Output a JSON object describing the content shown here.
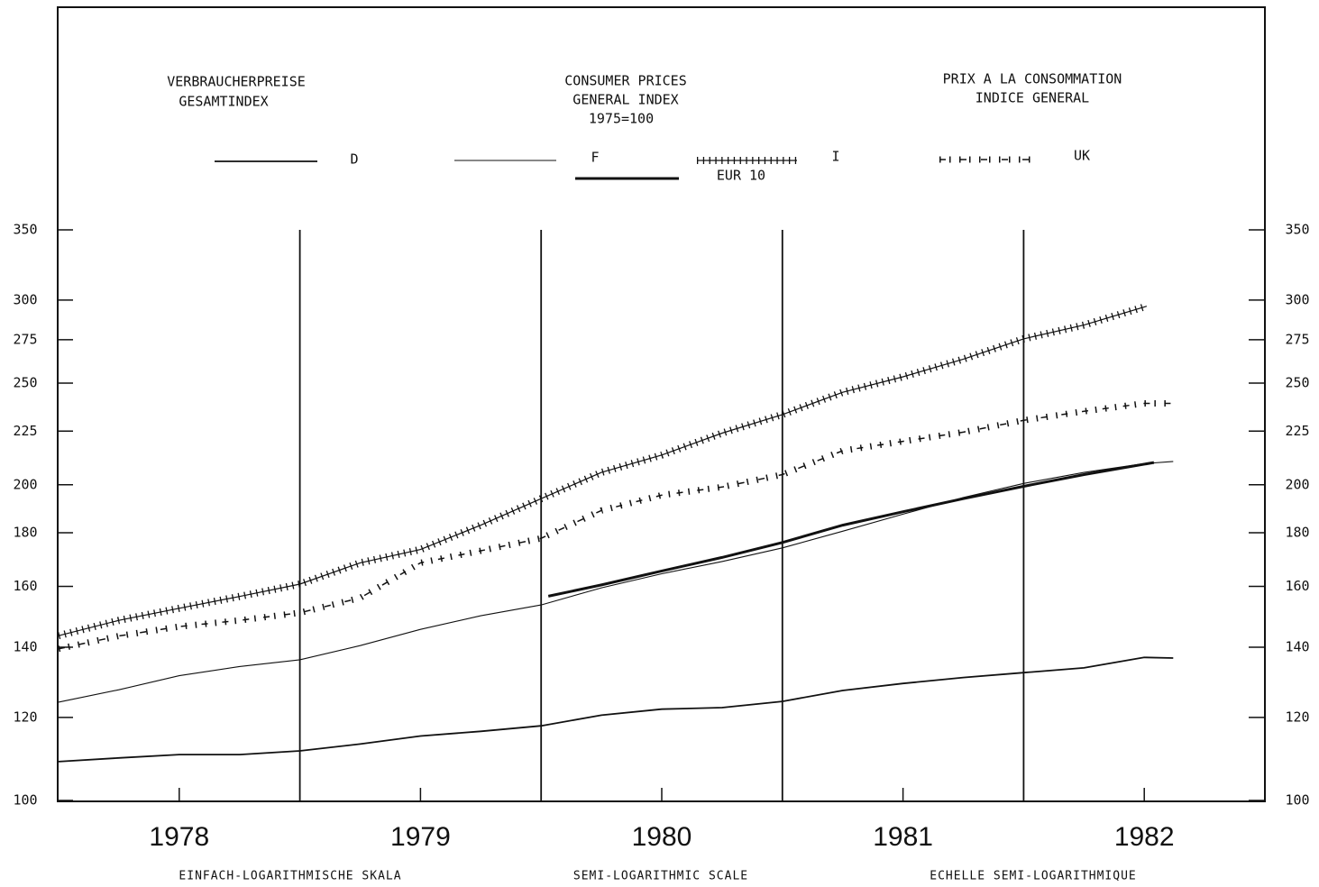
{
  "chart_data": {
    "type": "line",
    "title_de": [
      "VERBRAUCHERPREISE",
      "GESAMTINDEX"
    ],
    "title_en": [
      "CONSUMER PRICES",
      "GENERAL INDEX",
      "1975=100"
    ],
    "title_fr": [
      "PRIX A LA CONSOMMATION",
      "INDICE GENERAL"
    ],
    "scale_notes": [
      "EINFACH-LOGARITHMISCHE SKALA",
      "SEMI-LOGARITHMIC SCALE",
      "ECHELLE SEMI-LOGARITHMIQUE"
    ],
    "log_scale": true,
    "xlim": [
      1978,
      1983
    ],
    "xticks": [
      {
        "value": 1978.5,
        "label": "1978"
      },
      {
        "value": 1979.5,
        "label": "1979"
      },
      {
        "value": 1980.5,
        "label": "1980"
      },
      {
        "value": 1981.5,
        "label": "1981"
      },
      {
        "value": 1982.5,
        "label": "1982"
      }
    ],
    "year_lines": [
      1979,
      1980,
      1981,
      1982
    ],
    "ylim": [
      100,
      350
    ],
    "yticks": [
      100,
      120,
      140,
      160,
      180,
      200,
      225,
      250,
      275,
      300,
      350
    ],
    "series": [
      {
        "name": "D",
        "color": "#111",
        "line_style": "solid",
        "x": [
          1978.0,
          1978.25,
          1978.5,
          1978.75,
          1979.0,
          1979.25,
          1979.5,
          1979.75,
          1980.0,
          1980.25,
          1980.5,
          1980.75,
          1981.0,
          1981.25,
          1981.5,
          1981.75,
          1982.0,
          1982.25,
          1982.5,
          1982.62
        ],
        "values": [
          108.9,
          109.8,
          110.6,
          110.6,
          111.5,
          113.2,
          115.2,
          116.4,
          117.8,
          120.6,
          122.2,
          122.6,
          124.3,
          127.3,
          129.3,
          131.0,
          132.4,
          133.8,
          136.9,
          136.7
        ]
      },
      {
        "name": "F",
        "color": "#111",
        "line_style": "thin",
        "x": [
          1978.0,
          1978.25,
          1978.5,
          1978.75,
          1979.0,
          1979.25,
          1979.5,
          1979.75,
          1980.0,
          1980.25,
          1980.5,
          1980.75,
          1981.0,
          1981.25,
          1981.5,
          1981.75,
          1982.0,
          1982.25,
          1982.5,
          1982.62
        ],
        "values": [
          124.1,
          127.5,
          131.5,
          134.2,
          136.2,
          140.5,
          145.6,
          150.0,
          153.6,
          159.5,
          164.5,
          169.0,
          174.1,
          180.6,
          187.5,
          194.5,
          200.6,
          205.5,
          209.5,
          210.5
        ]
      },
      {
        "name": "EUR 10",
        "color": "#111",
        "line_style": "thick",
        "x": [
          1980.03,
          1980.25,
          1980.5,
          1980.75,
          1981.0,
          1981.25,
          1981.5,
          1981.75,
          1982.0,
          1982.25,
          1982.54
        ],
        "values": [
          156.6,
          160.5,
          165.5,
          170.5,
          176.2,
          183.0,
          188.5,
          194.0,
          199.3,
          204.5,
          210.0
        ]
      },
      {
        "name": "I",
        "color": "#111",
        "line_style": "crosses",
        "x": [
          1978.0,
          1978.25,
          1978.5,
          1978.75,
          1979.0,
          1979.25,
          1979.5,
          1979.75,
          1980.0,
          1980.25,
          1980.5,
          1980.75,
          1981.0,
          1981.25,
          1981.5,
          1981.75,
          1982.0,
          1982.25,
          1982.51
        ],
        "values": [
          143.6,
          148.5,
          152.5,
          156.5,
          160.8,
          168.5,
          173.5,
          183.0,
          194.0,
          205.5,
          213.5,
          224.0,
          233.3,
          245.0,
          253.5,
          263.5,
          275.5,
          284.0,
          296.0
        ]
      },
      {
        "name": "UK",
        "color": "#111",
        "line_style": "sparse-crosses",
        "x": [
          1978.0,
          1978.25,
          1978.5,
          1978.75,
          1979.0,
          1979.25,
          1979.5,
          1979.75,
          1980.0,
          1980.25,
          1980.5,
          1980.75,
          1981.0,
          1981.25,
          1981.5,
          1981.75,
          1982.0,
          1982.25,
          1982.5,
          1982.62
        ],
        "values": [
          139.5,
          143.5,
          146.5,
          148.5,
          151.0,
          156.0,
          168.5,
          173.0,
          177.8,
          189.0,
          195.5,
          199.0,
          204.5,
          215.5,
          220.0,
          224.5,
          230.4,
          235.0,
          239.1,
          239.1
        ]
      }
    ]
  }
}
